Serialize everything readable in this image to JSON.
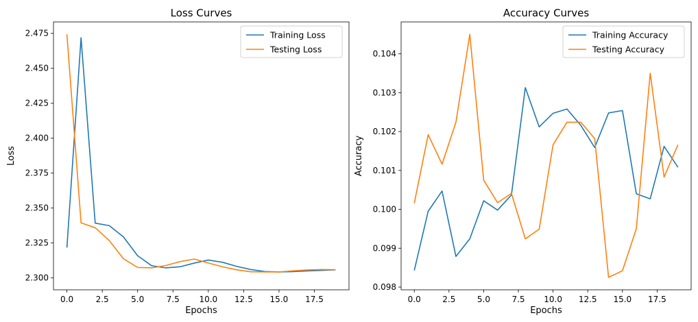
{
  "colors": {
    "training": "#1f77b4",
    "testing": "#ff7f0e"
  },
  "chart_data": [
    {
      "type": "line",
      "title": "Loss Curves",
      "xlabel": "Epochs",
      "ylabel": "Loss",
      "xlim": [
        -0.95,
        19.95
      ],
      "ylim": [
        2.2915,
        2.4832
      ],
      "xticks": [
        0,
        2.5,
        5,
        7.5,
        10,
        12.5,
        15,
        17.5
      ],
      "xtick_labels": [
        "0.0",
        "2.5",
        "5.0",
        "7.5",
        "10.0",
        "12.5",
        "15.0",
        "17.5"
      ],
      "yticks": [
        2.3,
        2.325,
        2.35,
        2.375,
        2.4,
        2.425,
        2.45,
        2.475
      ],
      "ytick_labels": [
        "2.300",
        "2.325",
        "2.350",
        "2.375",
        "2.400",
        "2.425",
        "2.450",
        "2.475"
      ],
      "legend_position": "top-right",
      "grid": false,
      "x": [
        0,
        1,
        2,
        3,
        4,
        5,
        6,
        7,
        8,
        9,
        10,
        11,
        12,
        13,
        14,
        15,
        16,
        17,
        18,
        19
      ],
      "series": [
        {
          "name": "Training Loss",
          "color_key": "training",
          "values": [
            2.3217,
            2.4719,
            2.3392,
            2.3374,
            2.3293,
            2.3159,
            2.3087,
            2.3072,
            2.308,
            2.3106,
            2.3128,
            2.3112,
            2.3083,
            2.306,
            2.3046,
            2.3043,
            2.3045,
            2.305,
            2.3054,
            2.3058
          ]
        },
        {
          "name": "Testing Loss",
          "color_key": "testing",
          "values": [
            2.4743,
            2.3394,
            2.3359,
            2.3267,
            2.3137,
            2.3075,
            2.3072,
            2.3089,
            2.3117,
            2.3135,
            2.3107,
            2.308,
            2.3058,
            2.3044,
            2.3043,
            2.3043,
            2.3051,
            2.3057,
            2.306,
            2.3059
          ]
        }
      ]
    },
    {
      "type": "line",
      "title": "Accuracy Curves",
      "xlabel": "Epochs",
      "ylabel": "Accuracy",
      "xlim": [
        -0.95,
        19.95
      ],
      "ylim": [
        0.09793,
        0.10482
      ],
      "xticks": [
        0,
        2.5,
        5,
        7.5,
        10,
        12.5,
        15,
        17.5
      ],
      "xtick_labels": [
        "0.0",
        "2.5",
        "5.0",
        "7.5",
        "10.0",
        "12.5",
        "15.0",
        "17.5"
      ],
      "yticks": [
        0.098,
        0.099,
        0.1,
        0.101,
        0.102,
        0.103,
        0.104
      ],
      "ytick_labels": [
        "0.098",
        "0.099",
        "0.100",
        "0.101",
        "0.102",
        "0.103",
        "0.104"
      ],
      "legend_position": "top-right",
      "grid": false,
      "x": [
        0,
        1,
        2,
        3,
        4,
        5,
        6,
        7,
        8,
        9,
        10,
        11,
        12,
        13,
        14,
        15,
        16,
        17,
        18,
        19
      ],
      "series": [
        {
          "name": "Training Accuracy",
          "color_key": "training",
          "values": [
            0.09843,
            0.09995,
            0.10047,
            0.09879,
            0.09924,
            0.10022,
            0.09998,
            0.10037,
            0.10313,
            0.10212,
            0.10247,
            0.10258,
            0.10216,
            0.10159,
            0.10248,
            0.10254,
            0.1004,
            0.10027,
            0.10162,
            0.10108
          ]
        },
        {
          "name": "Testing Accuracy",
          "color_key": "testing",
          "values": [
            0.10016,
            0.10192,
            0.10116,
            0.10224,
            0.1045,
            0.10075,
            0.10017,
            0.10041,
            0.09924,
            0.09949,
            0.10166,
            0.10224,
            0.10224,
            0.10182,
            0.09825,
            0.09842,
            0.0995,
            0.1035,
            0.10083,
            0.10166
          ]
        }
      ]
    }
  ]
}
